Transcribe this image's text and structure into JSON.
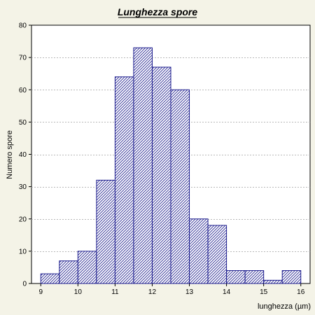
{
  "colors": {
    "background": "#f4f3e7",
    "plot_background": "#ffffff",
    "bar_stroke": "#1a1a8c",
    "hatch": "#1a1a8c",
    "gridline": "#b8b8b8",
    "axis": "#000000"
  },
  "chart_data": {
    "type": "bar",
    "title": "Lunghezza spore",
    "xlabel": "lunghezza (µm)",
    "ylabel": "Numero spore",
    "xlim": [
      8.75,
      16.25
    ],
    "ylim": [
      0,
      80
    ],
    "x_ticks": [
      9,
      10,
      11,
      12,
      13,
      14,
      15,
      16
    ],
    "y_ticks": [
      0,
      10,
      20,
      30,
      40,
      50,
      60,
      70,
      80
    ],
    "grid": "horizontal dashed",
    "bar_fill": "diagonal hatch",
    "bins": [
      {
        "from": 9.0,
        "to": 9.5,
        "value": 3
      },
      {
        "from": 9.5,
        "to": 10.0,
        "value": 7
      },
      {
        "from": 10.0,
        "to": 10.5,
        "value": 10
      },
      {
        "from": 10.5,
        "to": 11.0,
        "value": 32
      },
      {
        "from": 11.0,
        "to": 11.5,
        "value": 64
      },
      {
        "from": 11.5,
        "to": 12.0,
        "value": 73
      },
      {
        "from": 12.0,
        "to": 12.5,
        "value": 67
      },
      {
        "from": 12.5,
        "to": 13.0,
        "value": 60
      },
      {
        "from": 13.0,
        "to": 13.5,
        "value": 20
      },
      {
        "from": 13.5,
        "to": 14.0,
        "value": 18
      },
      {
        "from": 14.0,
        "to": 14.5,
        "value": 4
      },
      {
        "from": 14.5,
        "to": 15.0,
        "value": 4
      },
      {
        "from": 15.0,
        "to": 15.5,
        "value": 1
      },
      {
        "from": 15.5,
        "to": 16.0,
        "value": 4
      }
    ]
  }
}
